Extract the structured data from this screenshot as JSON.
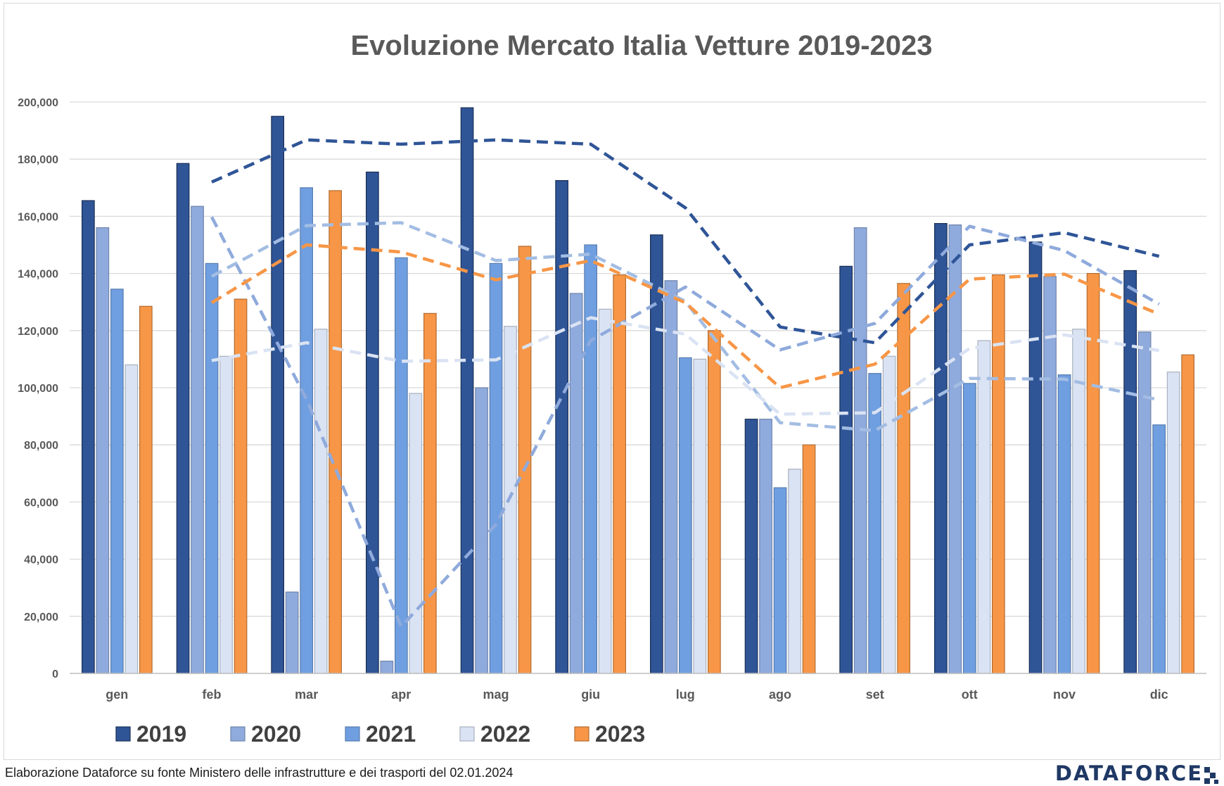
{
  "chart_data": {
    "type": "bar",
    "title": "Evoluzione Mercato Italia Vetture 2019-2023",
    "categories": [
      "gen",
      "feb",
      "mar",
      "apr",
      "mag",
      "giu",
      "lug",
      "ago",
      "set",
      "ott",
      "nov",
      "dic"
    ],
    "ylim": [
      0,
      200000
    ],
    "yticks": [
      "0",
      "20,000",
      "40,000",
      "60,000",
      "80,000",
      "100,000",
      "120,000",
      "140,000",
      "160,000",
      "180,000",
      "200,000"
    ],
    "ytick_values": [
      0,
      20000,
      40000,
      60000,
      80000,
      100000,
      120000,
      140000,
      160000,
      180000,
      200000
    ],
    "grid": true,
    "legend_position": "bottom",
    "series": [
      {
        "name": "2019",
        "color": "#2f5597",
        "values": [
          165500,
          178500,
          195000,
          175500,
          198000,
          172500,
          153500,
          89000,
          142500,
          157500,
          151000,
          141000
        ]
      },
      {
        "name": "2020",
        "color": "#8faadc",
        "values": [
          156000,
          163500,
          28500,
          4300,
          100000,
          133000,
          137500,
          89000,
          156000,
          157000,
          139000,
          119500
        ]
      },
      {
        "name": "2021",
        "color": "#6f9fe0",
        "values": [
          134500,
          143500,
          170000,
          145500,
          143500,
          150000,
          110500,
          65000,
          105000,
          101500,
          104500,
          87000
        ]
      },
      {
        "name": "2022",
        "color": "#dae3f3",
        "values": [
          108000,
          111000,
          120500,
          98000,
          121500,
          127500,
          110000,
          71500,
          111000,
          116500,
          120500,
          105500
        ]
      },
      {
        "name": "2023",
        "color": "#f79646",
        "values": [
          128500,
          131000,
          169000,
          126000,
          149500,
          139500,
          120000,
          80000,
          136500,
          139500,
          140000,
          111500
        ]
      }
    ]
  },
  "footer": {
    "source_text": "Elaborazione Dataforce su fonte Ministero delle infrastrutture e dei trasporti del 02.01.2024",
    "logo_text": "DATAFORCE"
  }
}
